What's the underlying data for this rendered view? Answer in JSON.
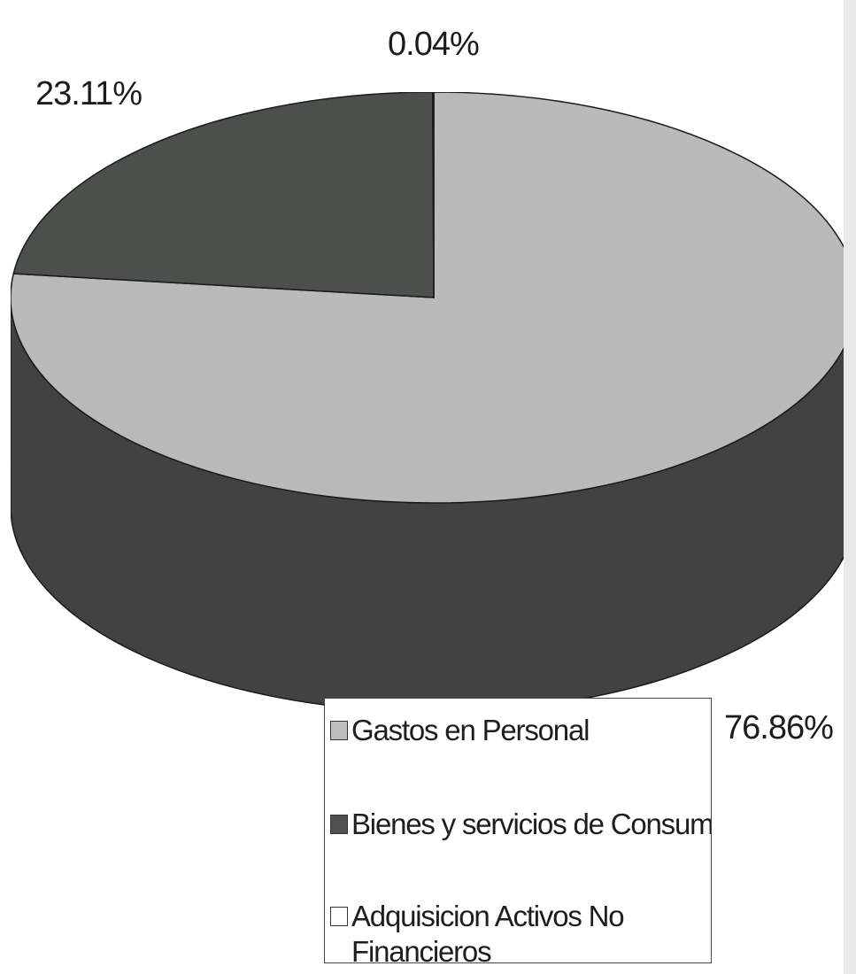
{
  "chart_data": {
    "type": "pie",
    "style": "3d",
    "categories": [
      "Gastos en Personal",
      "Bienes y servicios de Consumos",
      "Adquisicion Activos No Financieros"
    ],
    "values": [
      76.86,
      23.11,
      0.04
    ],
    "labels": [
      "76.86%",
      "23.11%",
      "0.04%"
    ],
    "colors": [
      "#bdbdbd",
      "#4e524e",
      "#ffffff"
    ],
    "legend_position": "bottom-right"
  }
}
